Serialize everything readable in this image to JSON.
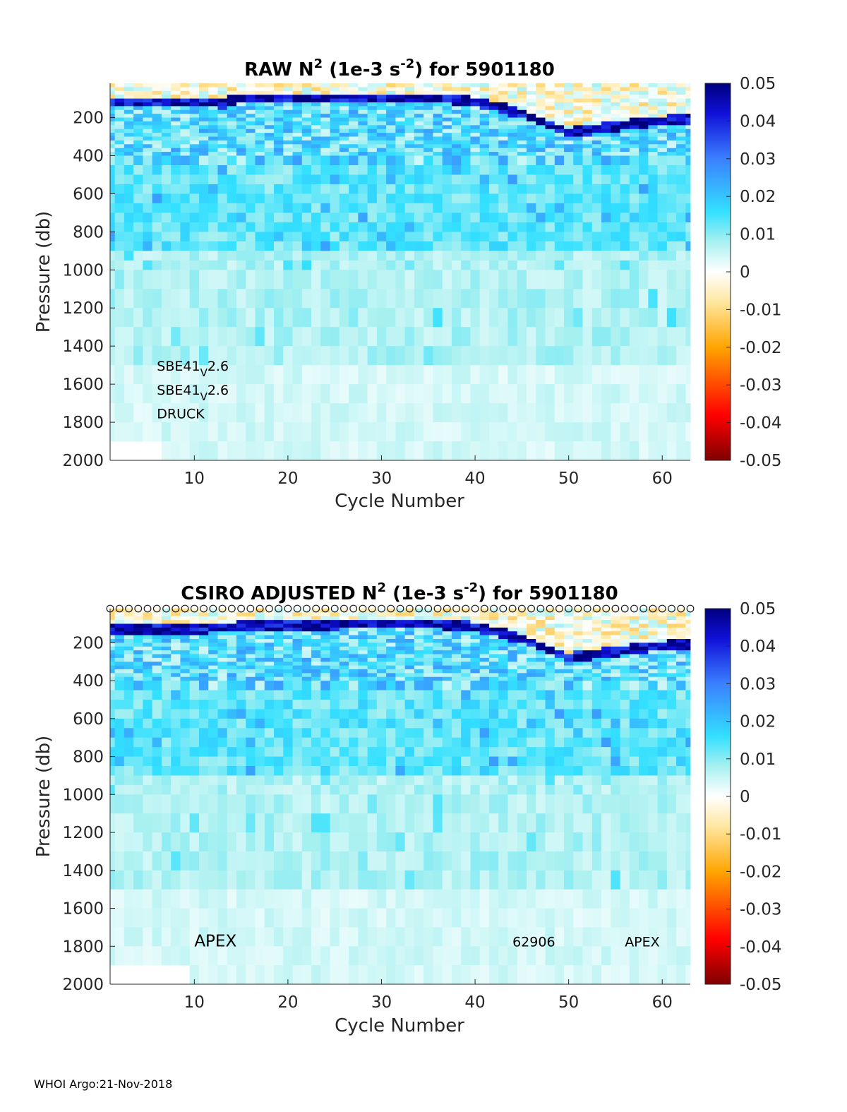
{
  "footer": "WHOI Argo:21-Nov-2018",
  "chart_data": [
    {
      "type": "heatmap",
      "title_parts": [
        "RAW N",
        "2",
        " (1e-3 s",
        "-2",
        ") for 5901180"
      ],
      "xlabel": "Cycle Number",
      "ylabel": "Pressure (db)",
      "xlim": [
        1,
        63
      ],
      "ylim": [
        2000,
        20
      ],
      "y_reversed": true,
      "xticks": [
        10,
        20,
        30,
        40,
        50,
        60
      ],
      "yticks": [
        200,
        400,
        600,
        800,
        1000,
        1200,
        1400,
        1600,
        1800,
        2000
      ],
      "colorbar": {
        "colormap": "jet-like with white at 0",
        "clim": [
          -0.05,
          0.05
        ],
        "ticks": [
          "0.05",
          "0.04",
          "0.03",
          "0.02",
          "0.01",
          "0",
          "-0.01",
          "-0.02",
          "-0.03",
          "-0.04",
          "-0.05"
        ]
      },
      "annotations": [
        {
          "base": "SBE41",
          "sub": "V",
          "rest": "2.6",
          "x": 6,
          "y": 1530
        },
        {
          "base": "SBE41",
          "sub": "V",
          "rest": "2.6",
          "x": 6,
          "y": 1655
        },
        {
          "base": "DRUCK",
          "sub": "",
          "rest": "",
          "x": 6,
          "y": 1780
        }
      ],
      "missing_block": {
        "x": [
          1,
          6
        ],
        "y": [
          1900,
          2000
        ]
      },
      "thermocline": [
        [
          10,
          120
        ],
        [
          13,
          125
        ],
        [
          15,
          100
        ],
        [
          36,
          100
        ],
        [
          39,
          110
        ],
        [
          42,
          140
        ],
        [
          45,
          180
        ],
        [
          48,
          240
        ],
        [
          50,
          280
        ],
        [
          53,
          260
        ],
        [
          57,
          230
        ],
        [
          62,
          210
        ]
      ],
      "profile_markers": false,
      "grid": false
    },
    {
      "type": "heatmap",
      "title_parts": [
        "CSIRO  ADJUSTED N",
        "2",
        " (1e-3 s",
        "-2",
        ") for 5901180"
      ],
      "xlabel": "Cycle Number",
      "ylabel": "Pressure (db)",
      "xlim": [
        1,
        63
      ],
      "ylim": [
        2000,
        20
      ],
      "y_reversed": true,
      "xticks": [
        10,
        20,
        30,
        40,
        50,
        60
      ],
      "yticks": [
        200,
        400,
        600,
        800,
        1000,
        1200,
        1400,
        1600,
        1800,
        2000
      ],
      "colorbar": {
        "colormap": "jet-like with white at 0",
        "clim": [
          -0.05,
          0.05
        ],
        "ticks": [
          "0.05",
          "0.04",
          "0.03",
          "0.02",
          "0.01",
          "0",
          "-0.01",
          "-0.02",
          "-0.03",
          "-0.04",
          "-0.05"
        ]
      },
      "annotations": [
        {
          "base": "APEX",
          "sub": "",
          "rest": "",
          "x": 10,
          "y": 1800,
          "big": true
        },
        {
          "base": "62906",
          "sub": "",
          "rest": "",
          "x": 44,
          "y": 1800
        },
        {
          "base": "APEX",
          "sub": "",
          "rest": "",
          "x": 56,
          "y": 1800
        }
      ],
      "missing_block": {
        "x": [
          1,
          9
        ],
        "y": [
          1900,
          2000
        ]
      },
      "thermocline": [
        [
          8,
          130
        ],
        [
          14,
          120
        ],
        [
          16,
          110
        ],
        [
          35,
          100
        ],
        [
          39,
          110
        ],
        [
          42,
          140
        ],
        [
          45,
          180
        ],
        [
          48,
          240
        ],
        [
          50,
          280
        ],
        [
          53,
          260
        ],
        [
          57,
          230
        ],
        [
          62,
          210
        ]
      ],
      "profile_markers": true,
      "grid": false
    }
  ]
}
